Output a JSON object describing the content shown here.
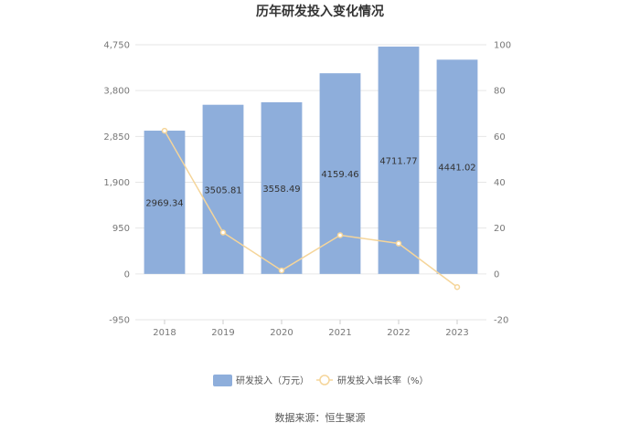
{
  "chart_data": {
    "type": "bar",
    "title": "历年研发投入变化情况",
    "categories": [
      "2018",
      "2019",
      "2020",
      "2021",
      "2022",
      "2023"
    ],
    "series": [
      {
        "name": "研发投入（万元）",
        "type": "bar",
        "axis": "left",
        "color": "#8eaedb",
        "values": [
          2969.34,
          3505.81,
          3558.49,
          4159.46,
          4711.77,
          4441.02
        ],
        "labels": [
          "2969.34",
          "3505.81",
          "3558.49",
          "4159.46",
          "4711.77",
          "4441.02"
        ]
      },
      {
        "name": "研发投入增长率（%）",
        "type": "line",
        "axis": "right",
        "color": "#f5d59a",
        "values": [
          62.5,
          18.07,
          1.5,
          16.89,
          13.28,
          -5.75
        ]
      }
    ],
    "y_left": {
      "ylim": [
        -950,
        4750
      ],
      "ticks": [
        -950,
        0,
        950,
        1900,
        2850,
        3800,
        4750
      ],
      "tick_labels": [
        "-950",
        "0",
        "950",
        "1,900",
        "2,850",
        "3,800",
        "4,750"
      ]
    },
    "y_right": {
      "ylim": [
        -20,
        100
      ],
      "ticks": [
        -20,
        0,
        20,
        40,
        60,
        80,
        100
      ],
      "tick_labels": [
        "-20",
        "0",
        "20",
        "40",
        "60",
        "80",
        "100"
      ]
    },
    "grid": true,
    "legend_position": "bottom"
  },
  "source_text": "数据来源：恒生聚源"
}
